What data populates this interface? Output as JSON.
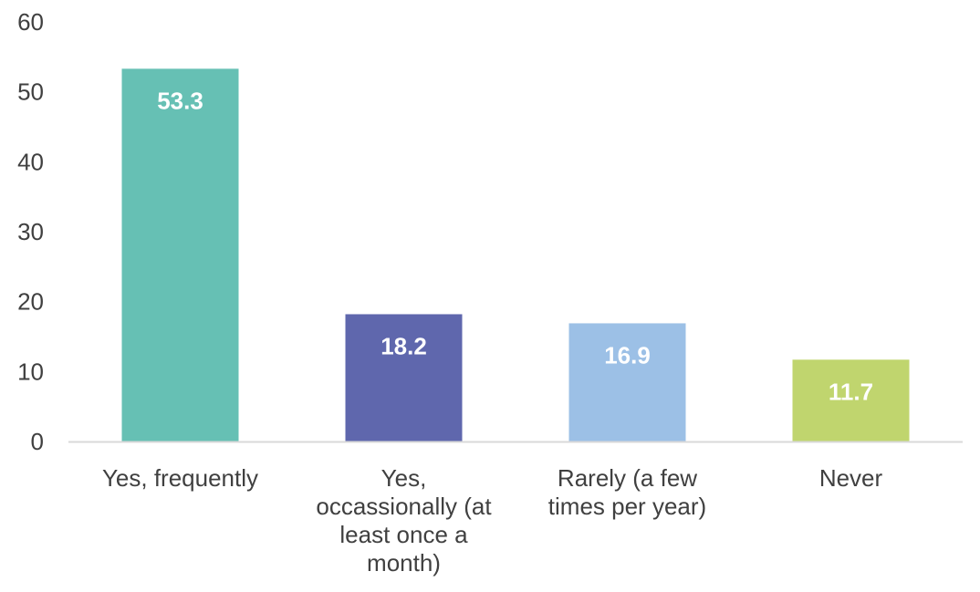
{
  "chart_data": {
    "type": "bar",
    "title": "",
    "xlabel": "",
    "ylabel": "",
    "ylim": [
      0,
      60
    ],
    "yticks": [
      0,
      10,
      20,
      30,
      40,
      50,
      60
    ],
    "grid": false,
    "legend": "none",
    "categories": [
      [
        "Yes, frequently"
      ],
      [
        "Yes,",
        "occassionally (at",
        "least once a",
        "month)"
      ],
      [
        "Rarely (a few",
        "times per year)"
      ],
      [
        "Never"
      ]
    ],
    "values": [
      53.3,
      18.2,
      16.9,
      11.7
    ],
    "data_labels": [
      "53.3",
      "18.2",
      "16.9",
      "11.7"
    ],
    "colors": [
      "#66c0b4",
      "#5f67ad",
      "#9cc0e6",
      "#c0d56e"
    ],
    "axis_color": "#d9d9d9",
    "text_color": "#404040",
    "data_label_color": "#ffffff"
  }
}
